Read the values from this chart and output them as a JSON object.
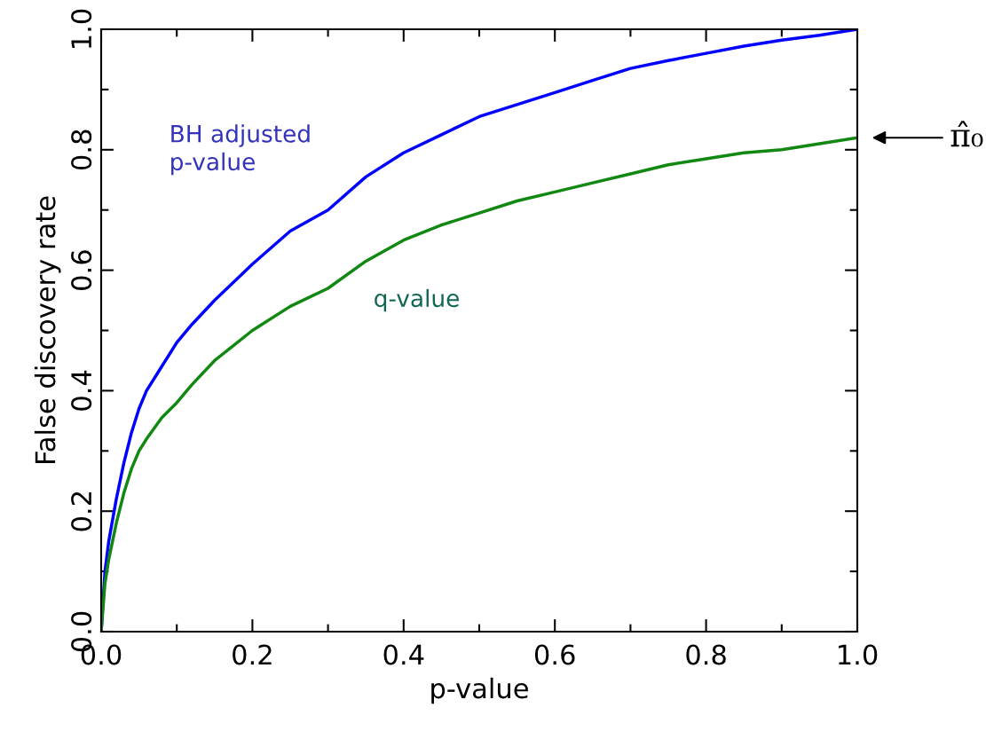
{
  "chart_data": {
    "type": "line",
    "xlabel": "p-value",
    "ylabel": "False discovery rate",
    "xlim": [
      0,
      1
    ],
    "ylim": [
      0,
      1
    ],
    "xticks": [
      {
        "value": 0,
        "label": "0.0"
      },
      {
        "value": 0.2,
        "label": "0.2"
      },
      {
        "value": 0.4,
        "label": "0.4"
      },
      {
        "value": 0.6,
        "label": "0.6"
      },
      {
        "value": 0.8,
        "label": "0.8"
      },
      {
        "value": 1,
        "label": "1.0"
      }
    ],
    "yticks": [
      {
        "value": 0,
        "label": "0.0"
      },
      {
        "value": 0.2,
        "label": "0.2"
      },
      {
        "value": 0.4,
        "label": "0.4"
      },
      {
        "value": 0.6,
        "label": "0.6"
      },
      {
        "value": 0.8,
        "label": "0.8"
      },
      {
        "value": 1,
        "label": "1.0"
      }
    ],
    "x": [
      0,
      0.005,
      0.01,
      0.02,
      0.03,
      0.04,
      0.05,
      0.06,
      0.08,
      0.1,
      0.12,
      0.15,
      0.2,
      0.25,
      0.3,
      0.35,
      0.4,
      0.45,
      0.5,
      0.55,
      0.6,
      0.65,
      0.7,
      0.75,
      0.8,
      0.85,
      0.9,
      0.95,
      1.0
    ],
    "series": [
      {
        "name": "BH adjusted\np-value",
        "color": "#0000ff",
        "values": [
          0,
          0.1,
          0.15,
          0.22,
          0.28,
          0.33,
          0.37,
          0.4,
          0.44,
          0.48,
          0.51,
          0.55,
          0.61,
          0.665,
          0.7,
          0.755,
          0.795,
          0.825,
          0.855,
          0.875,
          0.895,
          0.915,
          0.935,
          0.948,
          0.96,
          0.972,
          0.982,
          0.99,
          1.0
        ]
      },
      {
        "name": "q-value",
        "color": "#118811",
        "values": [
          0,
          0.08,
          0.12,
          0.18,
          0.23,
          0.27,
          0.3,
          0.32,
          0.355,
          0.38,
          0.41,
          0.45,
          0.5,
          0.54,
          0.57,
          0.615,
          0.65,
          0.675,
          0.695,
          0.715,
          0.73,
          0.745,
          0.76,
          0.775,
          0.785,
          0.795,
          0.8,
          0.81,
          0.82
        ]
      }
    ],
    "annotations": [
      {
        "text": "π̂₀",
        "x": 1.0,
        "y": 0.82
      }
    ],
    "grid": false,
    "legend": false,
    "marker": "none",
    "line_style": "solid"
  }
}
